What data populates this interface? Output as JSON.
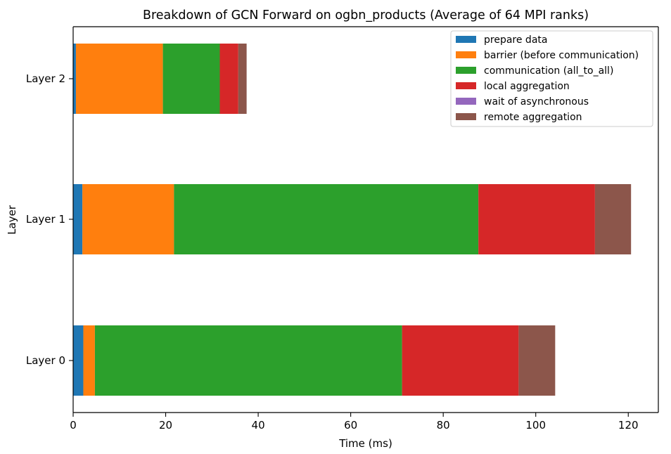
{
  "chart_data": {
    "type": "bar",
    "orientation": "horizontal",
    "stacked": true,
    "title": "Breakdown of GCN Forward on ogbn_products (Average of 64 MPI ranks)",
    "xlabel": "Time (ms)",
    "ylabel": "Layer",
    "xlim": [
      0,
      126.5
    ],
    "xticks": [
      0,
      20,
      40,
      60,
      80,
      100,
      120
    ],
    "categories": [
      "Layer 0",
      "Layer 1",
      "Layer 2"
    ],
    "series": [
      {
        "name": "prepare data",
        "color": "#1f77b4",
        "values": [
          2.2,
          2.0,
          0.6
        ]
      },
      {
        "name": "barrier (before communication)",
        "color": "#ff7f0e",
        "values": [
          2.5,
          19.8,
          18.8
        ]
      },
      {
        "name": "communication (all_to_all)",
        "color": "#2ca02c",
        "values": [
          66.4,
          65.8,
          12.3
        ]
      },
      {
        "name": "local aggregation",
        "color": "#d62728",
        "values": [
          25.2,
          25.2,
          4.0
        ]
      },
      {
        "name": "wait of asynchronous",
        "color": "#9467bd",
        "values": [
          0.0,
          0.0,
          0.0
        ]
      },
      {
        "name": "remote aggregation",
        "color": "#8c564b",
        "values": [
          7.9,
          7.8,
          1.8
        ]
      }
    ],
    "legend_position": "top-right",
    "grid": false
  }
}
